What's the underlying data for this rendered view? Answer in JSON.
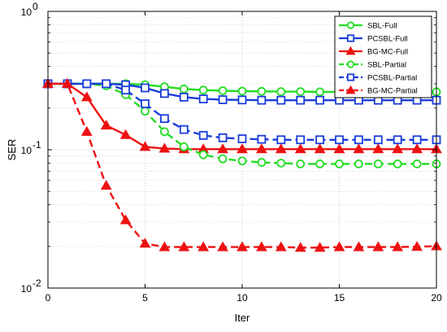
{
  "chart_data": {
    "type": "line",
    "xlabel": "Iter",
    "ylabel": "SER",
    "xlim": [
      0,
      20
    ],
    "ylim": [
      0.01,
      1
    ],
    "yscale": "log",
    "grid": true,
    "legend_position": "top-right",
    "x_ticks": [
      0,
      5,
      10,
      15,
      20
    ],
    "x_tick_labels": [
      "0",
      "5",
      "10",
      "15",
      "20"
    ],
    "y_ticks": [
      0.01,
      0.1,
      1
    ],
    "y_tick_labels": [
      [
        "10",
        "-2"
      ],
      [
        "10",
        "-1"
      ],
      [
        "10",
        "0"
      ]
    ],
    "x": [
      0,
      1,
      2,
      3,
      4,
      5,
      6,
      7,
      8,
      9,
      10,
      11,
      12,
      13,
      14,
      15,
      16,
      17,
      18,
      19,
      20
    ],
    "series": [
      {
        "name": "SBL-Full",
        "color": "#22dd22",
        "marker": "circle",
        "dash": false,
        "values": [
          0.3,
          0.3,
          0.3,
          0.3,
          0.3,
          0.295,
          0.285,
          0.275,
          0.27,
          0.267,
          0.265,
          0.264,
          0.263,
          0.263,
          0.262,
          0.262,
          0.262,
          0.262,
          0.262,
          0.262,
          0.262
        ]
      },
      {
        "name": "PCSBL-Full",
        "color": "#1a3ddb",
        "marker": "square",
        "dash": false,
        "values": [
          0.3,
          0.3,
          0.3,
          0.3,
          0.295,
          0.28,
          0.255,
          0.24,
          0.233,
          0.23,
          0.229,
          0.228,
          0.228,
          0.228,
          0.228,
          0.228,
          0.228,
          0.228,
          0.228,
          0.228,
          0.228
        ]
      },
      {
        "name": "BG-MC-Full",
        "color": "#ee1111",
        "marker": "triangle",
        "dash": false,
        "values": [
          0.3,
          0.3,
          0.24,
          0.15,
          0.128,
          0.105,
          0.102,
          0.101,
          0.101,
          0.101,
          0.101,
          0.101,
          0.101,
          0.101,
          0.101,
          0.101,
          0.101,
          0.101,
          0.101,
          0.101,
          0.101
        ]
      },
      {
        "name": "SBL-Partial",
        "color": "#22dd22",
        "marker": "circle",
        "dash": true,
        "values": [
          0.3,
          0.3,
          0.3,
          0.29,
          0.25,
          0.19,
          0.135,
          0.105,
          0.092,
          0.086,
          0.083,
          0.081,
          0.08,
          0.079,
          0.079,
          0.079,
          0.079,
          0.079,
          0.079,
          0.079,
          0.079
        ]
      },
      {
        "name": "PCSBL-Partial",
        "color": "#1a3ddb",
        "marker": "square",
        "dash": true,
        "values": [
          0.3,
          0.3,
          0.3,
          0.3,
          0.27,
          0.215,
          0.168,
          0.14,
          0.127,
          0.122,
          0.12,
          0.119,
          0.118,
          0.118,
          0.118,
          0.118,
          0.118,
          0.118,
          0.118,
          0.118,
          0.118
        ]
      },
      {
        "name": "BG-MC-Partial",
        "color": "#ee1111",
        "marker": "triangle",
        "dash": true,
        "values": [
          0.3,
          0.3,
          0.135,
          0.055,
          0.031,
          0.021,
          0.0198,
          0.0198,
          0.0198,
          0.0198,
          0.0198,
          0.0198,
          0.0198,
          0.0196,
          0.0196,
          0.0198,
          0.0198,
          0.0198,
          0.0198,
          0.0199,
          0.0201
        ]
      }
    ]
  }
}
